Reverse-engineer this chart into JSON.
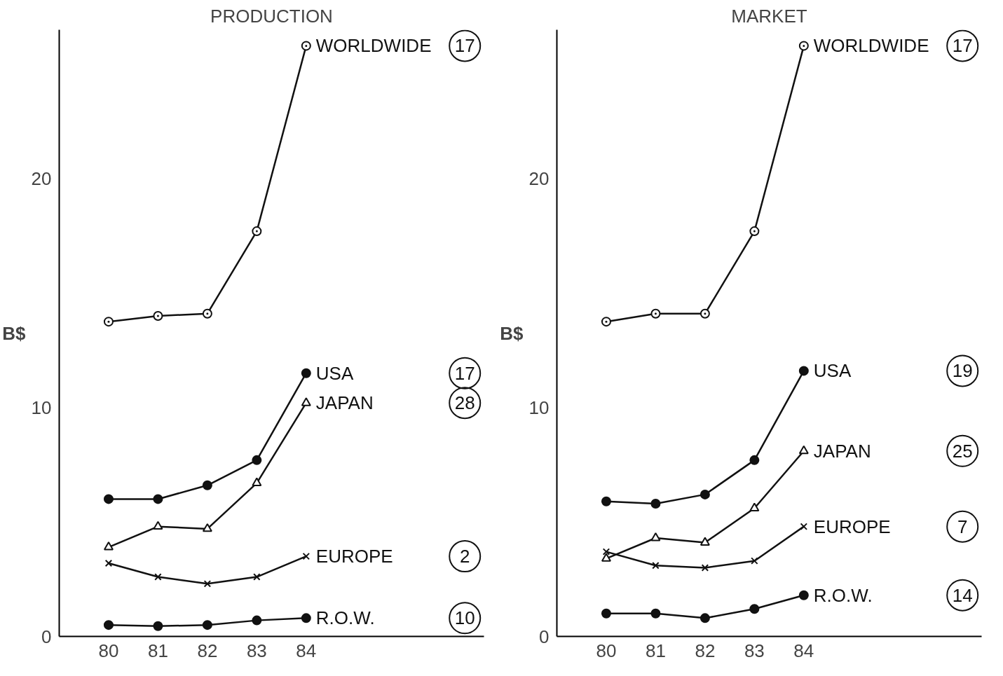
{
  "chart_data": [
    {
      "type": "line",
      "title": "PRODUCTION",
      "ylabel": "B$",
      "x": [
        80,
        81,
        82,
        83,
        84
      ],
      "xlim": [
        79,
        87.6
      ],
      "xticks": [
        80,
        81,
        82,
        83,
        84
      ],
      "ylim": [
        0,
        26.5
      ],
      "yticks": [
        0,
        10,
        20
      ],
      "grid": false,
      "series": [
        {
          "name": "WORLDWIDE",
          "color": "#111111",
          "marker": "circle_dot",
          "values": [
            13.75,
            14.0,
            14.1,
            17.7,
            25.8
          ]
        },
        {
          "name": "USA",
          "color": "#111111",
          "marker": "circle",
          "values": [
            6.0,
            6.0,
            6.6,
            7.7,
            11.5
          ]
        },
        {
          "name": "JAPAN",
          "color": "#111111",
          "marker": "triangle",
          "values": [
            3.9,
            4.8,
            4.7,
            6.7,
            10.2
          ]
        },
        {
          "name": "EUROPE",
          "color": "#111111",
          "marker": "cross",
          "values": [
            3.2,
            2.6,
            2.3,
            2.6,
            3.5
          ]
        },
        {
          "name": "R.O.W.",
          "color": "#111111",
          "marker": "circle",
          "values": [
            0.5,
            0.45,
            0.5,
            0.7,
            0.8
          ]
        }
      ],
      "annotations": [
        "17",
        "17",
        "28",
        "2",
        "10"
      ]
    },
    {
      "type": "line",
      "title": "MARKET",
      "ylabel": "B$",
      "x": [
        80,
        81,
        82,
        83,
        84
      ],
      "xlim": [
        79,
        87.6
      ],
      "xticks": [
        80,
        81,
        82,
        83,
        84
      ],
      "ylim": [
        0,
        26.5
      ],
      "yticks": [
        0,
        10,
        20
      ],
      "grid": false,
      "series": [
        {
          "name": "WORLDWIDE",
          "color": "#111111",
          "marker": "circle_dot",
          "values": [
            13.75,
            14.1,
            14.1,
            17.7,
            25.8
          ]
        },
        {
          "name": "USA",
          "color": "#111111",
          "marker": "circle",
          "values": [
            5.9,
            5.8,
            6.2,
            7.7,
            11.6
          ]
        },
        {
          "name": "JAPAN",
          "color": "#111111",
          "marker": "triangle",
          "values": [
            3.4,
            4.3,
            4.1,
            5.6,
            8.1
          ]
        },
        {
          "name": "EUROPE",
          "color": "#111111",
          "marker": "cross",
          "values": [
            3.7,
            3.1,
            3.0,
            3.3,
            4.8
          ]
        },
        {
          "name": "R.O.W.",
          "color": "#111111",
          "marker": "circle",
          "values": [
            1.0,
            1.0,
            0.8,
            1.2,
            1.8
          ]
        }
      ],
      "annotations": [
        "17",
        "19",
        "25",
        "7",
        "14"
      ]
    }
  ]
}
